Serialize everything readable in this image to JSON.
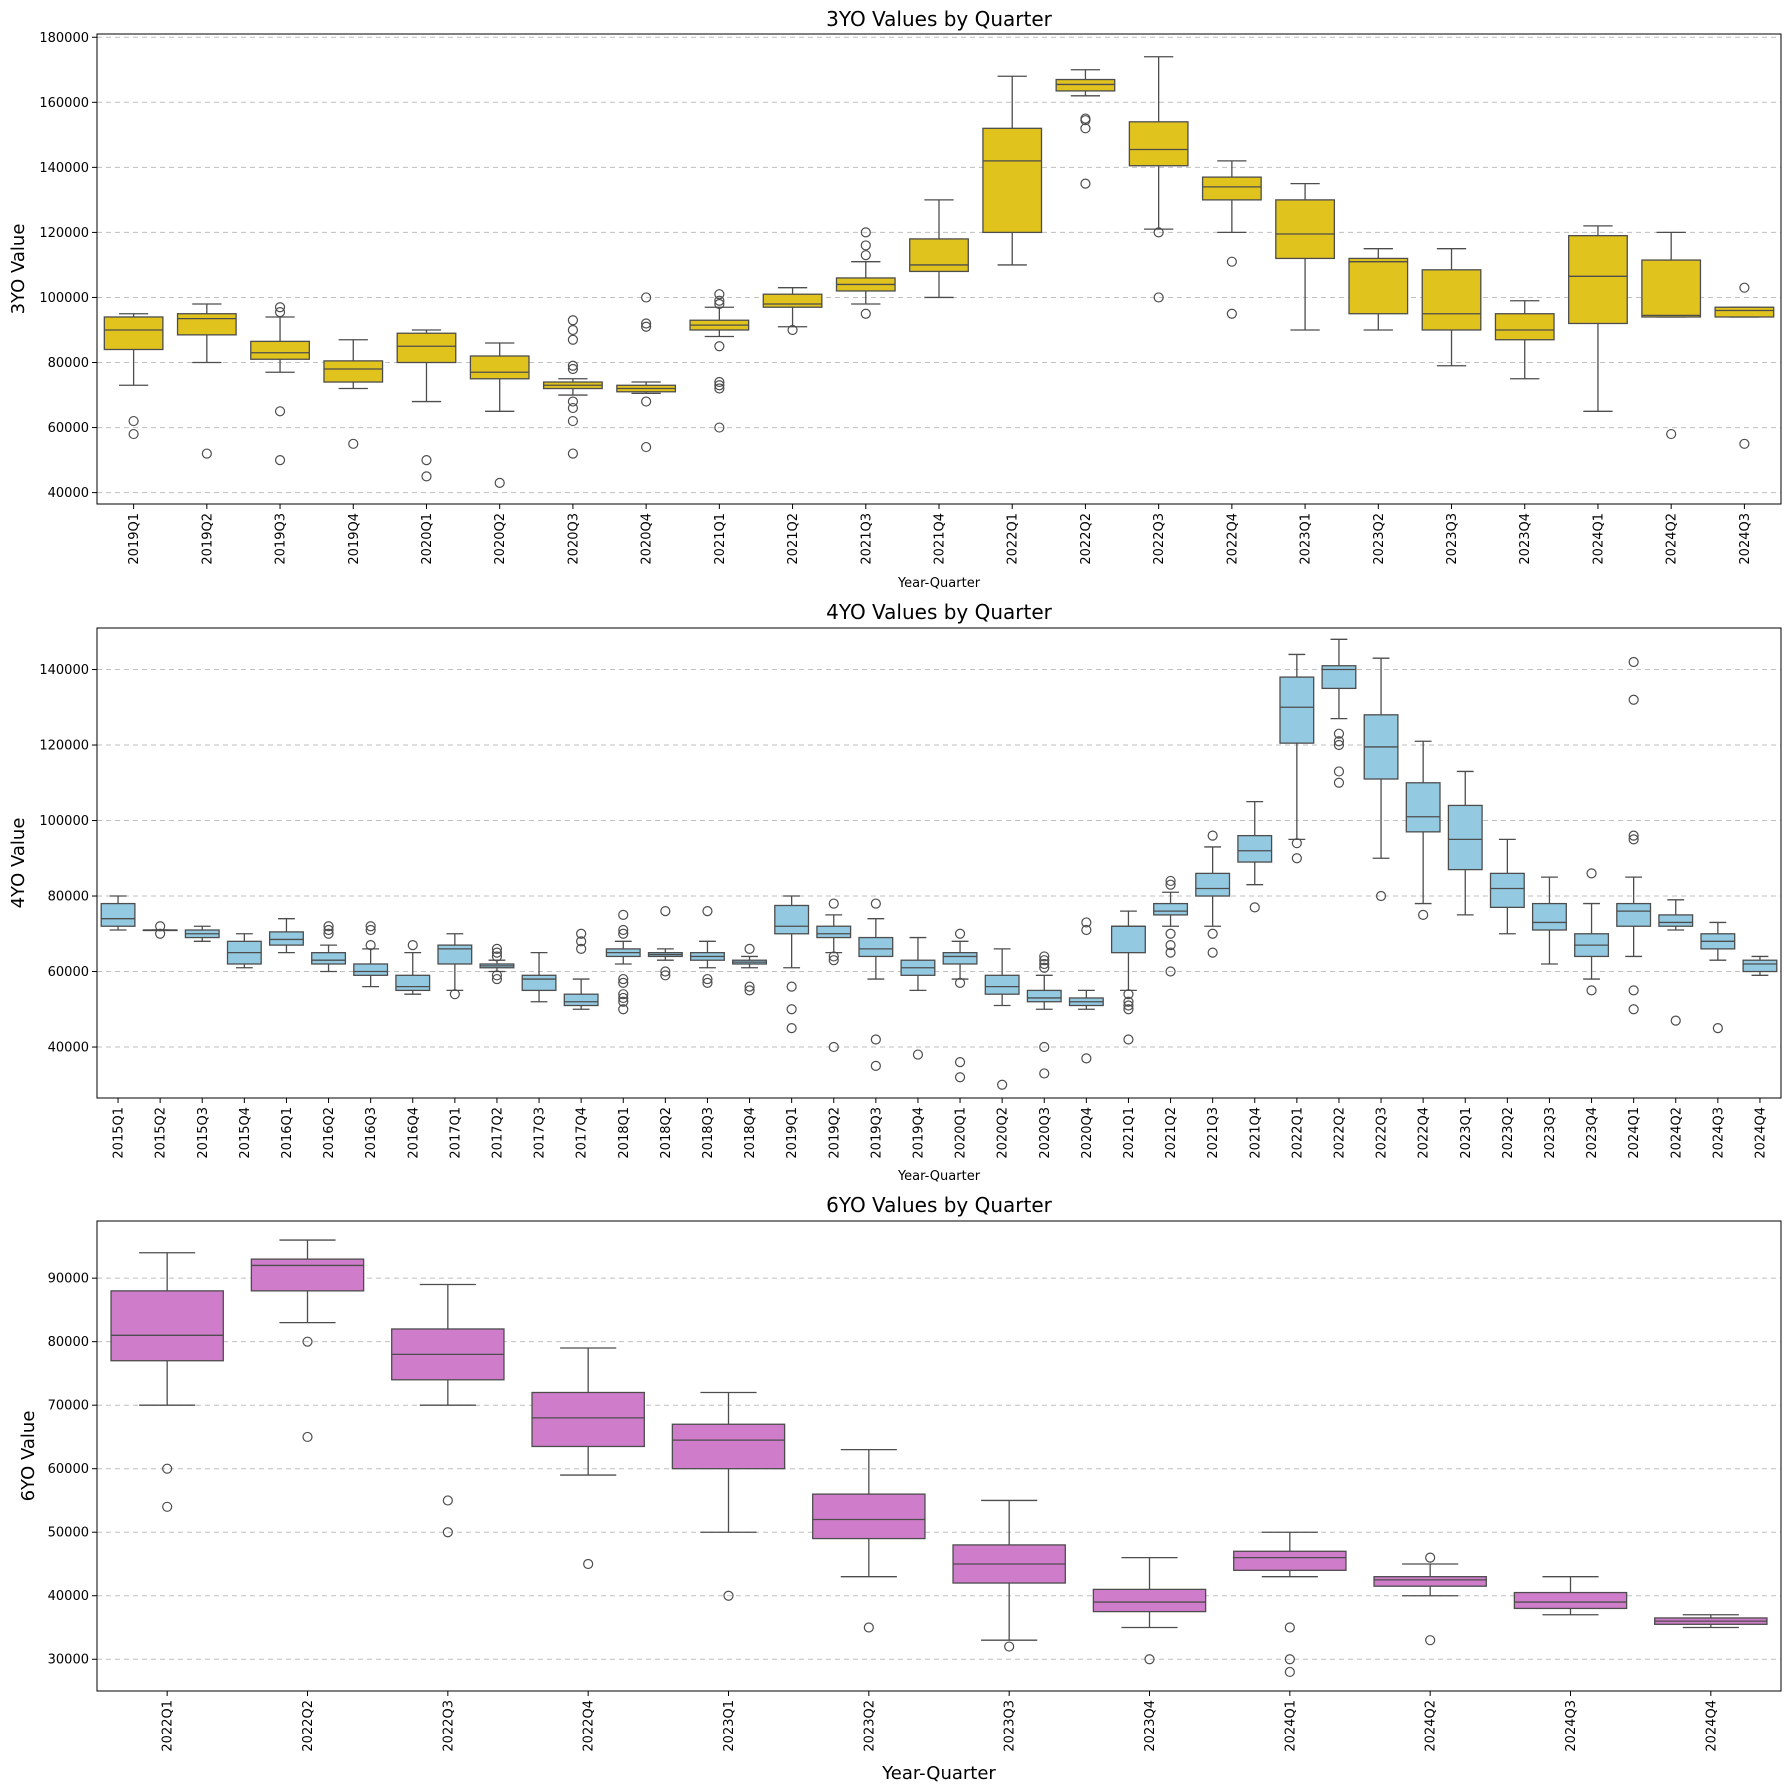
{
  "chart_data": [
    {
      "type": "box",
      "title": "3YO Values by Quarter",
      "xlabel": "Year-Quarter",
      "ylabel": "3YO Value",
      "color": "#E1C31E",
      "grid": "y-dashed",
      "ylim": [
        36500,
        181000
      ],
      "yticks": [
        40000,
        60000,
        80000,
        100000,
        120000,
        140000,
        160000,
        180000
      ],
      "categories": [
        "2019Q1",
        "2019Q2",
        "2019Q3",
        "2019Q4",
        "2020Q1",
        "2020Q2",
        "2020Q3",
        "2020Q4",
        "2021Q1",
        "2021Q2",
        "2021Q3",
        "2021Q4",
        "2022Q1",
        "2022Q2",
        "2022Q3",
        "2022Q4",
        "2023Q1",
        "2023Q2",
        "2023Q3",
        "2023Q4",
        "2024Q1",
        "2024Q2",
        "2024Q3"
      ],
      "boxes": [
        {
          "whislo": 73000,
          "q1": 84000,
          "med": 90000,
          "q3": 94000,
          "whishi": 95000,
          "fliers": [
            62000,
            58000
          ]
        },
        {
          "whislo": 80000,
          "q1": 88500,
          "med": 93500,
          "q3": 95000,
          "whishi": 98000,
          "fliers": [
            52000
          ]
        },
        {
          "whislo": 77000,
          "q1": 81000,
          "med": 83000,
          "q3": 86500,
          "whishi": 94000,
          "fliers": [
            97000,
            95500,
            65000,
            50000
          ]
        },
        {
          "whislo": 72000,
          "q1": 74000,
          "med": 78000,
          "q3": 80500,
          "whishi": 87000,
          "fliers": [
            55000
          ]
        },
        {
          "whislo": 68000,
          "q1": 80000,
          "med": 85000,
          "q3": 89000,
          "whishi": 90000,
          "fliers": [
            50000,
            45000
          ]
        },
        {
          "whislo": 65000,
          "q1": 75000,
          "med": 77000,
          "q3": 82000,
          "whishi": 86000,
          "fliers": [
            43000
          ]
        },
        {
          "whislo": 70000,
          "q1": 72000,
          "med": 73000,
          "q3": 74000,
          "whishi": 75000,
          "fliers": [
            93000,
            90000,
            87000,
            79000,
            78000,
            68000,
            66000,
            62000,
            52000
          ]
        },
        {
          "whislo": 70500,
          "q1": 71000,
          "med": 72000,
          "q3": 73000,
          "whishi": 74000,
          "fliers": [
            100000,
            92000,
            91000,
            68000,
            54000
          ]
        },
        {
          "whislo": 88000,
          "q1": 90000,
          "med": 91500,
          "q3": 93000,
          "whishi": 97000,
          "fliers": [
            101000,
            99000,
            98000,
            85000,
            74000,
            73000,
            72000,
            60000
          ]
        },
        {
          "whislo": 91000,
          "q1": 97000,
          "med": 98000,
          "q3": 101000,
          "whishi": 103000,
          "fliers": [
            90000
          ]
        },
        {
          "whislo": 98000,
          "q1": 102000,
          "med": 104000,
          "q3": 106000,
          "whishi": 111000,
          "fliers": [
            120000,
            116000,
            113000,
            95000
          ]
        },
        {
          "whislo": 100000,
          "q1": 108000,
          "med": 110000,
          "q3": 118000,
          "whishi": 130000,
          "fliers": []
        },
        {
          "whislo": 110000,
          "q1": 120000,
          "med": 142000,
          "q3": 152000,
          "whishi": 168000,
          "fliers": []
        },
        {
          "whislo": 162000,
          "q1": 163500,
          "med": 165500,
          "q3": 167000,
          "whishi": 170000,
          "fliers": [
            155000,
            154500,
            152000,
            135000
          ]
        },
        {
          "whislo": 121000,
          "q1": 140500,
          "med": 145500,
          "q3": 154000,
          "whishi": 174000,
          "fliers": [
            120000,
            100000
          ]
        },
        {
          "whislo": 120000,
          "q1": 130000,
          "med": 134000,
          "q3": 137000,
          "whishi": 142000,
          "fliers": [
            111000,
            95000
          ]
        },
        {
          "whislo": 90000,
          "q1": 112000,
          "med": 119500,
          "q3": 130000,
          "whishi": 135000,
          "fliers": []
        },
        {
          "whislo": 90000,
          "q1": 95000,
          "med": 111000,
          "q3": 112000,
          "whishi": 115000,
          "fliers": []
        },
        {
          "whislo": 79000,
          "q1": 90000,
          "med": 95000,
          "q3": 108500,
          "whishi": 115000,
          "fliers": []
        },
        {
          "whislo": 75000,
          "q1": 87000,
          "med": 90000,
          "q3": 95000,
          "whishi": 99000,
          "fliers": []
        },
        {
          "whislo": 65000,
          "q1": 92000,
          "med": 106500,
          "q3": 119000,
          "whishi": 122000,
          "fliers": []
        },
        {
          "whislo": 94000,
          "q1": 94000,
          "med": 94500,
          "q3": 111500,
          "whishi": 120000,
          "fliers": [
            58000
          ]
        },
        {
          "whislo": 94000,
          "q1": 94000,
          "med": 96000,
          "q3": 97000,
          "whishi": 97000,
          "fliers": [
            103000,
            55000
          ]
        }
      ]
    },
    {
      "type": "box",
      "title": "4YO Values by Quarter",
      "xlabel": "Year-Quarter",
      "ylabel": "4YO Value",
      "color": "#93CAE2",
      "grid": "y-dashed",
      "ylim": [
        26500,
        151000
      ],
      "yticks": [
        40000,
        60000,
        80000,
        100000,
        120000,
        140000
      ],
      "categories": [
        "2015Q1",
        "2015Q2",
        "2015Q3",
        "2015Q4",
        "2016Q1",
        "2016Q2",
        "2016Q3",
        "2016Q4",
        "2017Q1",
        "2017Q2",
        "2017Q3",
        "2017Q4",
        "2018Q1",
        "2018Q2",
        "2018Q3",
        "2018Q4",
        "2019Q1",
        "2019Q2",
        "2019Q3",
        "2019Q4",
        "2020Q1",
        "2020Q2",
        "2020Q3",
        "2020Q4",
        "2021Q1",
        "2021Q2",
        "2021Q3",
        "2021Q4",
        "2022Q1",
        "2022Q2",
        "2022Q3",
        "2022Q4",
        "2023Q1",
        "2023Q2",
        "2023Q3",
        "2023Q4",
        "2024Q1",
        "2024Q2",
        "2024Q3",
        "2024Q4"
      ],
      "boxes": [
        {
          "whislo": 71000,
          "q1": 72000,
          "med": 74000,
          "q3": 78000,
          "whishi": 80000,
          "fliers": []
        },
        {
          "whislo": 71000,
          "q1": 71000,
          "med": 71000,
          "q3": 71000,
          "whishi": 71000,
          "fliers": [
            72000,
            70000
          ]
        },
        {
          "whislo": 68000,
          "q1": 69000,
          "med": 70000,
          "q3": 71000,
          "whishi": 72000,
          "fliers": []
        },
        {
          "whislo": 61000,
          "q1": 62000,
          "med": 65000,
          "q3": 68000,
          "whishi": 70000,
          "fliers": []
        },
        {
          "whislo": 65000,
          "q1": 67000,
          "med": 68500,
          "q3": 70500,
          "whishi": 74000,
          "fliers": []
        },
        {
          "whislo": 60000,
          "q1": 62000,
          "med": 63000,
          "q3": 65000,
          "whishi": 67000,
          "fliers": [
            72000,
            71000,
            70000
          ]
        },
        {
          "whislo": 56000,
          "q1": 59000,
          "med": 60000,
          "q3": 62000,
          "whishi": 66000,
          "fliers": [
            72000,
            71000,
            67000
          ]
        },
        {
          "whislo": 54000,
          "q1": 55000,
          "med": 56000,
          "q3": 59000,
          "whishi": 65000,
          "fliers": [
            67000
          ]
        },
        {
          "whislo": 55000,
          "q1": 62000,
          "med": 66000,
          "q3": 67000,
          "whishi": 70000,
          "fliers": [
            54000
          ]
        },
        {
          "whislo": 60000,
          "q1": 61000,
          "med": 61500,
          "q3": 62000,
          "whishi": 63000,
          "fliers": [
            66000,
            65000,
            64000,
            59000,
            58000
          ]
        },
        {
          "whislo": 52000,
          "q1": 55000,
          "med": 58000,
          "q3": 59000,
          "whishi": 65000,
          "fliers": []
        },
        {
          "whislo": 50000,
          "q1": 51000,
          "med": 52000,
          "q3": 54000,
          "whishi": 58000,
          "fliers": [
            70000,
            68000,
            66000
          ]
        },
        {
          "whislo": 62000,
          "q1": 64000,
          "med": 65000,
          "q3": 66000,
          "whishi": 68000,
          "fliers": [
            75000,
            71000,
            70000,
            58000,
            57000,
            54000,
            53000,
            52000,
            50000
          ]
        },
        {
          "whislo": 63000,
          "q1": 64000,
          "med": 64500,
          "q3": 65000,
          "whishi": 66000,
          "fliers": [
            76000,
            60000,
            59000
          ]
        },
        {
          "whislo": 61000,
          "q1": 63000,
          "med": 64000,
          "q3": 65000,
          "whishi": 68000,
          "fliers": [
            76000,
            58000,
            57000
          ]
        },
        {
          "whislo": 61000,
          "q1": 62000,
          "med": 62500,
          "q3": 63000,
          "whishi": 64000,
          "fliers": [
            66000,
            56000,
            55000
          ]
        },
        {
          "whislo": 61000,
          "q1": 70000,
          "med": 72000,
          "q3": 77500,
          "whishi": 80000,
          "fliers": [
            56000,
            50000,
            45000
          ]
        },
        {
          "whislo": 65000,
          "q1": 69000,
          "med": 70000,
          "q3": 72000,
          "whishi": 75000,
          "fliers": [
            78000,
            64000,
            63000,
            40000
          ]
        },
        {
          "whislo": 58000,
          "q1": 64000,
          "med": 66000,
          "q3": 69000,
          "whishi": 74000,
          "fliers": [
            78000,
            42000,
            35000
          ]
        },
        {
          "whislo": 55000,
          "q1": 59000,
          "med": 61000,
          "q3": 63000,
          "whishi": 69000,
          "fliers": [
            38000
          ]
        },
        {
          "whislo": 58000,
          "q1": 62000,
          "med": 64000,
          "q3": 65000,
          "whishi": 68000,
          "fliers": [
            70000,
            57000,
            36000,
            32000
          ]
        },
        {
          "whislo": 51000,
          "q1": 54000,
          "med": 56000,
          "q3": 59000,
          "whishi": 66000,
          "fliers": [
            30000
          ]
        },
        {
          "whislo": 50000,
          "q1": 52000,
          "med": 53000,
          "q3": 55000,
          "whishi": 59000,
          "fliers": [
            64000,
            63000,
            62000,
            61000,
            40000,
            33000
          ]
        },
        {
          "whislo": 50000,
          "q1": 51000,
          "med": 52000,
          "q3": 53000,
          "whishi": 55000,
          "fliers": [
            73000,
            71000,
            37000
          ]
        },
        {
          "whislo": 55000,
          "q1": 65000,
          "med": 72000,
          "q3": 72000,
          "whishi": 76000,
          "fliers": [
            54000,
            52000,
            51000,
            50000,
            42000
          ]
        },
        {
          "whislo": 72000,
          "q1": 75000,
          "med": 76000,
          "q3": 78000,
          "whishi": 81000,
          "fliers": [
            84000,
            83000,
            70000,
            67000,
            65000,
            60000
          ]
        },
        {
          "whislo": 72000,
          "q1": 80000,
          "med": 82000,
          "q3": 86000,
          "whishi": 93000,
          "fliers": [
            96000,
            70000,
            65000
          ]
        },
        {
          "whislo": 83000,
          "q1": 89000,
          "med": 92000,
          "q3": 96000,
          "whishi": 105000,
          "fliers": [
            77000
          ]
        },
        {
          "whislo": 95000,
          "q1": 120500,
          "med": 130000,
          "q3": 138000,
          "whishi": 144000,
          "fliers": [
            94000,
            90000
          ]
        },
        {
          "whislo": 127000,
          "q1": 135000,
          "med": 140000,
          "q3": 141000,
          "whishi": 148000,
          "fliers": [
            123000,
            121000,
            120000,
            113000,
            110000
          ]
        },
        {
          "whislo": 90000,
          "q1": 111000,
          "med": 119500,
          "q3": 128000,
          "whishi": 143000,
          "fliers": [
            80000
          ]
        },
        {
          "whislo": 78000,
          "q1": 97000,
          "med": 101000,
          "q3": 110000,
          "whishi": 121000,
          "fliers": [
            75000
          ]
        },
        {
          "whislo": 75000,
          "q1": 87000,
          "med": 95000,
          "q3": 104000,
          "whishi": 113000,
          "fliers": []
        },
        {
          "whislo": 70000,
          "q1": 77000,
          "med": 82000,
          "q3": 86000,
          "whishi": 95000,
          "fliers": []
        },
        {
          "whislo": 62000,
          "q1": 71000,
          "med": 73000,
          "q3": 78000,
          "whishi": 85000,
          "fliers": []
        },
        {
          "whislo": 58000,
          "q1": 64000,
          "med": 67000,
          "q3": 70000,
          "whishi": 78000,
          "fliers": [
            86000,
            55000
          ]
        },
        {
          "whislo": 64000,
          "q1": 72000,
          "med": 76000,
          "q3": 78000,
          "whishi": 85000,
          "fliers": [
            142000,
            132000,
            96000,
            95000,
            55000,
            50000
          ]
        },
        {
          "whislo": 71000,
          "q1": 72000,
          "med": 73000,
          "q3": 75000,
          "whishi": 79000,
          "fliers": [
            47000
          ]
        },
        {
          "whislo": 63000,
          "q1": 66000,
          "med": 68000,
          "q3": 70000,
          "whishi": 73000,
          "fliers": [
            45000
          ]
        },
        {
          "whislo": 59000,
          "q1": 60000,
          "med": 62000,
          "q3": 63000,
          "whishi": 64000,
          "fliers": []
        }
      ]
    },
    {
      "type": "box",
      "title": "6YO Values by Quarter",
      "xlabel": "Year-Quarter",
      "ylabel": "6YO Value",
      "color": "#CF7CCA",
      "grid": "y-dashed",
      "ylim": [
        25000,
        99000
      ],
      "yticks": [
        30000,
        40000,
        50000,
        60000,
        70000,
        80000,
        90000
      ],
      "categories": [
        "2022Q1",
        "2022Q2",
        "2022Q3",
        "2022Q4",
        "2023Q1",
        "2023Q2",
        "2023Q3",
        "2023Q4",
        "2024Q1",
        "2024Q2",
        "2024Q3",
        "2024Q4"
      ],
      "boxes": [
        {
          "whislo": 70000,
          "q1": 77000,
          "med": 81000,
          "q3": 88000,
          "whishi": 94000,
          "fliers": [
            60000,
            54000
          ]
        },
        {
          "whislo": 83000,
          "q1": 88000,
          "med": 92000,
          "q3": 93000,
          "whishi": 96000,
          "fliers": [
            80000,
            65000
          ]
        },
        {
          "whislo": 70000,
          "q1": 74000,
          "med": 78000,
          "q3": 82000,
          "whishi": 89000,
          "fliers": [
            55000,
            50000
          ]
        },
        {
          "whislo": 59000,
          "q1": 63500,
          "med": 68000,
          "q3": 72000,
          "whishi": 79000,
          "fliers": [
            45000
          ]
        },
        {
          "whislo": 50000,
          "q1": 60000,
          "med": 64500,
          "q3": 67000,
          "whishi": 72000,
          "fliers": [
            40000
          ]
        },
        {
          "whislo": 43000,
          "q1": 49000,
          "med": 52000,
          "q3": 56000,
          "whishi": 63000,
          "fliers": [
            35000
          ]
        },
        {
          "whislo": 33000,
          "q1": 42000,
          "med": 45000,
          "q3": 48000,
          "whishi": 55000,
          "fliers": [
            32000
          ]
        },
        {
          "whislo": 35000,
          "q1": 37500,
          "med": 39000,
          "q3": 41000,
          "whishi": 46000,
          "fliers": [
            30000
          ]
        },
        {
          "whislo": 43000,
          "q1": 44000,
          "med": 46000,
          "q3": 47000,
          "whishi": 50000,
          "fliers": [
            35000,
            30000,
            28000
          ]
        },
        {
          "whislo": 40000,
          "q1": 41500,
          "med": 42500,
          "q3": 43000,
          "whishi": 45000,
          "fliers": [
            46000,
            33000
          ]
        },
        {
          "whislo": 37000,
          "q1": 38000,
          "med": 39000,
          "q3": 40500,
          "whishi": 43000,
          "fliers": []
        },
        {
          "whislo": 35000,
          "q1": 35500,
          "med": 36000,
          "q3": 36500,
          "whishi": 37000,
          "fliers": []
        }
      ]
    }
  ]
}
